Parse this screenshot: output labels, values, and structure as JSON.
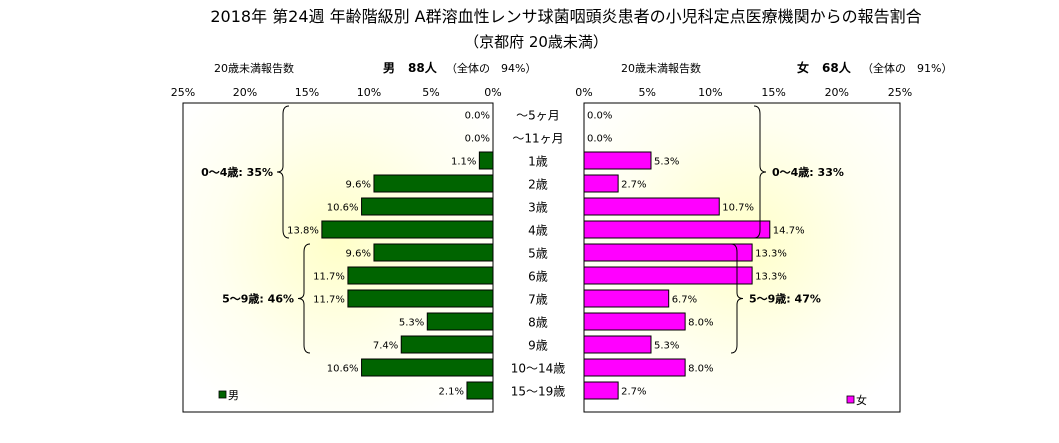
{
  "chart_data": {
    "type": "bar",
    "title": "2018年 第24週 年齢階級別 A群溶血性レンサ球菌咽頭炎患者の小児科定点医療機関からの報告割合",
    "subtitle": "（京都府 20歳未満）",
    "categories": [
      "～5ヶ月",
      "～11ヶ月",
      "1歳",
      "2歳",
      "3歳",
      "4歳",
      "5歳",
      "6歳",
      "7歳",
      "8歳",
      "9歳",
      "10～14歳",
      "15～19歳"
    ],
    "series": [
      {
        "name": "男",
        "color": "#006400",
        "values": [
          0.0,
          0.0,
          1.1,
          9.6,
          10.6,
          13.8,
          9.6,
          11.7,
          11.7,
          5.3,
          7.4,
          10.6,
          2.1
        ],
        "value_labels": [
          "0.0%",
          "0.0%",
          "1.1%",
          "9.6%",
          "10.6%",
          "13.8%",
          "9.6%",
          "11.7%",
          "11.7%",
          "5.3%",
          "7.4%",
          "10.6%",
          "2.1%"
        ],
        "header_label": "20歳未満報告数",
        "header_sex": "男",
        "header_count": "88人",
        "header_note": "（全体の　94%）",
        "groups": [
          {
            "label": "0～4歳: 35%",
            "from": 0,
            "to": 5
          },
          {
            "label": "5～9歳: 46%",
            "from": 6,
            "to": 10
          }
        ]
      },
      {
        "name": "女",
        "color": "#ff00ff",
        "values": [
          0.0,
          0.0,
          5.3,
          2.7,
          10.7,
          14.7,
          13.3,
          13.3,
          6.7,
          8.0,
          5.3,
          8.0,
          2.7
        ],
        "value_labels": [
          "0.0%",
          "0.0%",
          "5.3%",
          "2.7%",
          "10.7%",
          "14.7%",
          "13.3%",
          "13.3%",
          "6.7%",
          "8.0%",
          "5.3%",
          "8.0%",
          "2.7%"
        ],
        "header_label": "20歳未満報告数",
        "header_sex": "女",
        "header_count": "68人",
        "header_note": "（全体の　91%）",
        "groups": [
          {
            "label": "0～4歳: 33%",
            "from": 0,
            "to": 5
          },
          {
            "label": "5～9歳: 47%",
            "from": 6,
            "to": 10
          }
        ]
      }
    ],
    "axis": {
      "min": 0,
      "max": 25,
      "ticks": [
        0,
        5,
        10,
        15,
        20,
        25
      ],
      "tick_labels": [
        "0%",
        "5%",
        "10%",
        "15%",
        "20%",
        "25%"
      ],
      "left_reversed": true
    },
    "grid": false,
    "legend": [
      {
        "label": "男",
        "placement": "bottom-left"
      },
      {
        "label": "女",
        "placement": "bottom-right"
      }
    ]
  }
}
